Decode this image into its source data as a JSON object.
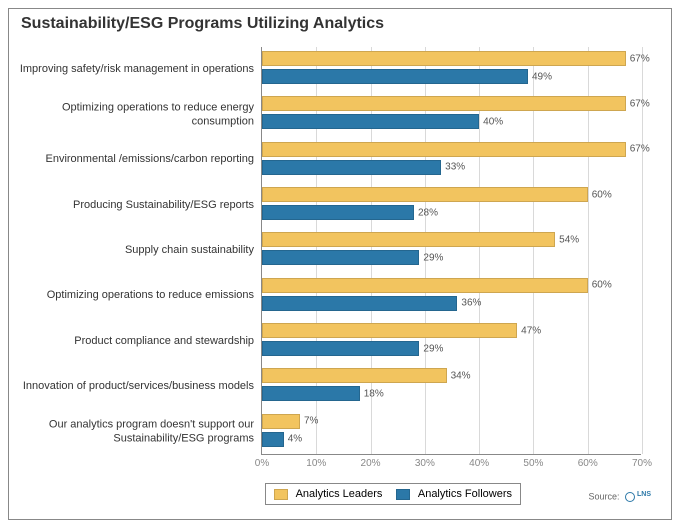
{
  "title": "Sustainability/ESG Programs Utilizing Analytics",
  "title_fontsize": 16,
  "chart": {
    "type": "grouped-horizontal-bar",
    "xlim": [
      0,
      70
    ],
    "xtick_step": 10,
    "x_tick_labels": [
      "0%",
      "10%",
      "20%",
      "30%",
      "40%",
      "50%",
      "60%",
      "70%"
    ],
    "grid_color": "#d9d9d9",
    "border_color": "#888888",
    "background_color": "#ffffff",
    "label_fontsize": 11,
    "value_fontsize": 10,
    "series": [
      {
        "key": "leaders",
        "name": "Analytics Leaders",
        "color": "#f2c45f"
      },
      {
        "key": "followers",
        "name": "Analytics Followers",
        "color": "#2b78a8"
      }
    ],
    "categories": [
      {
        "label": "Improving safety/risk management in operations",
        "leaders": 67,
        "followers": 49
      },
      {
        "label": "Optimizing operations to reduce energy consumption",
        "leaders": 67,
        "followers": 40
      },
      {
        "label": "Environmental /emissions/carbon reporting",
        "leaders": 67,
        "followers": 33
      },
      {
        "label": "Producing Sustainability/ESG reports",
        "leaders": 60,
        "followers": 28
      },
      {
        "label": "Supply chain sustainability",
        "leaders": 54,
        "followers": 29
      },
      {
        "label": "Optimizing operations to reduce emissions",
        "leaders": 60,
        "followers": 36
      },
      {
        "label": "Product compliance and stewardship",
        "leaders": 47,
        "followers": 29
      },
      {
        "label": "Innovation of product/services/business models",
        "leaders": 34,
        "followers": 18
      },
      {
        "label": "Our analytics program doesn't support our Sustainability/ESG programs",
        "leaders": 7,
        "followers": 4
      }
    ]
  },
  "legend": {
    "items": [
      {
        "label": "Analytics Leaders",
        "color": "#f2c45f"
      },
      {
        "label": "Analytics Followers",
        "color": "#2b78a8"
      }
    ]
  },
  "source": {
    "prefix": "Source:",
    "brand": "LNS",
    "brand_sub": "Research"
  }
}
